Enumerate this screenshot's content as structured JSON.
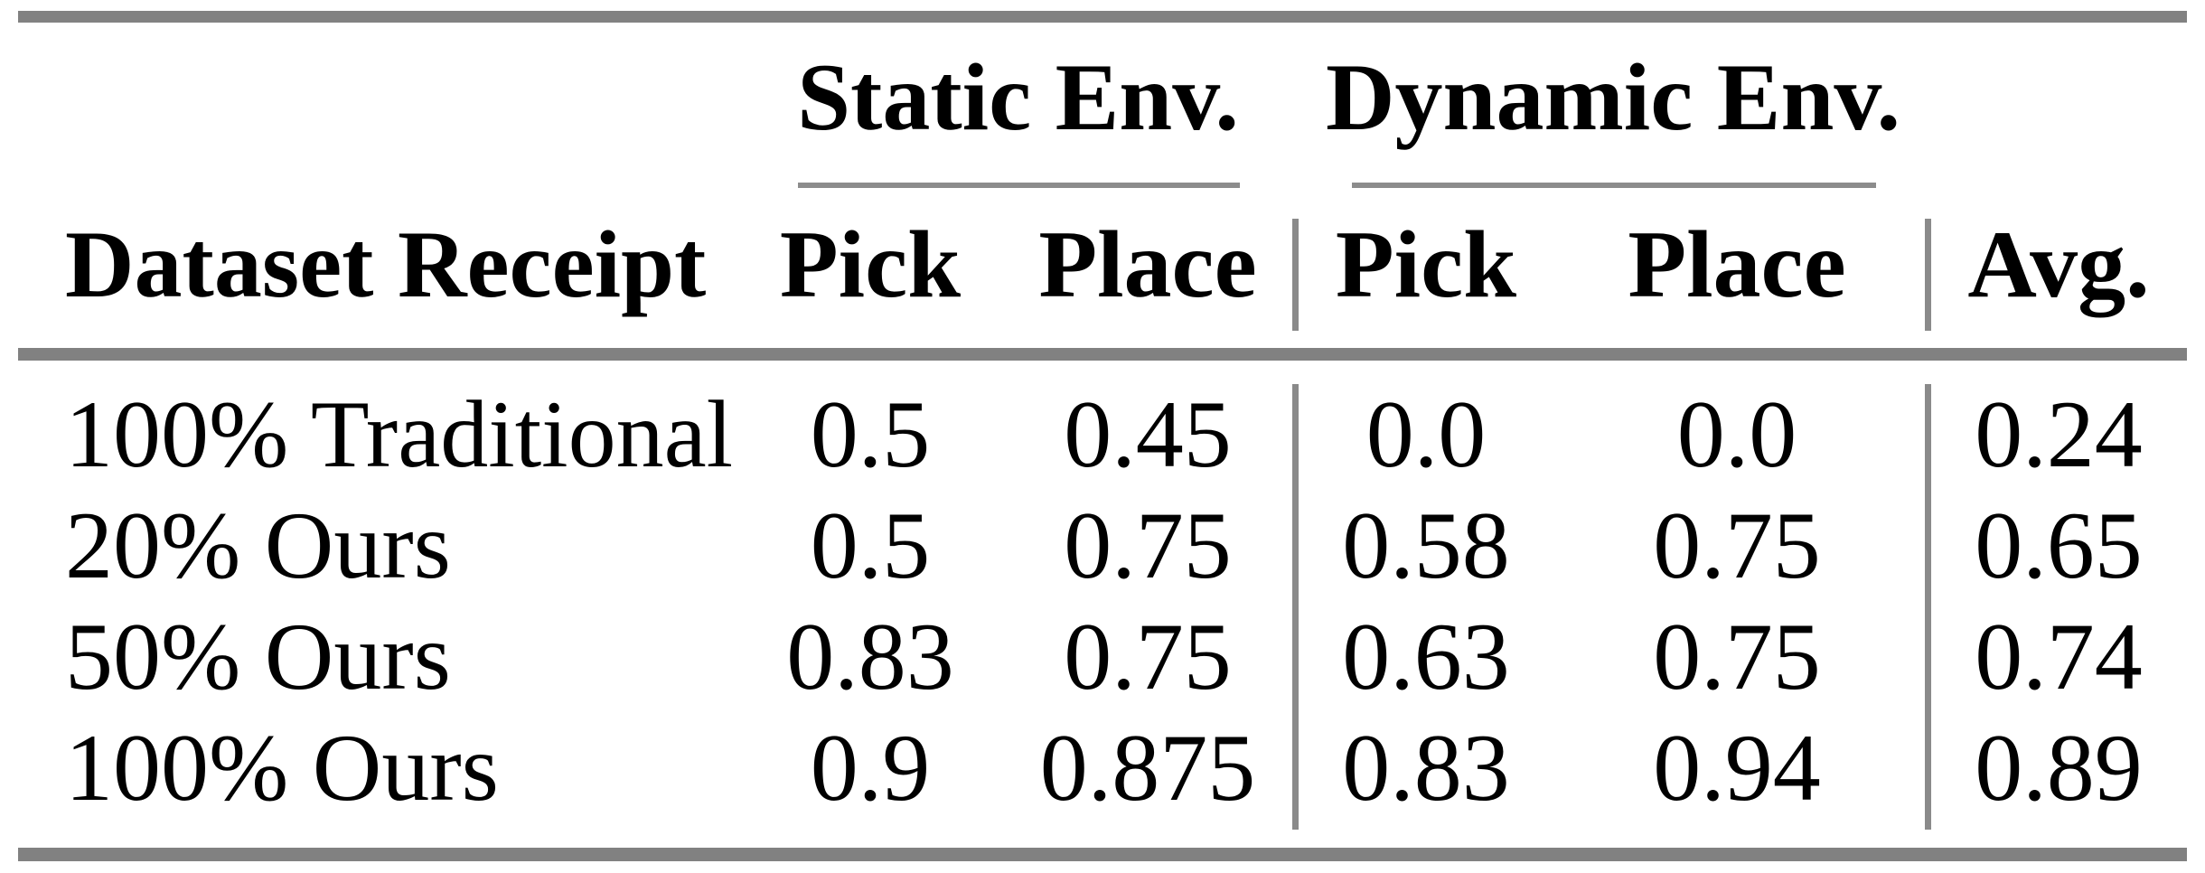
{
  "table": {
    "col_groups": [
      {
        "label": "Static Env."
      },
      {
        "label": "Dynamic Env."
      }
    ],
    "headers": {
      "dataset": "Dataset Receipt",
      "static_pick": "Pick",
      "static_place": "Place",
      "dynamic_pick": "Pick",
      "dynamic_place": "Place",
      "avg": "Avg."
    },
    "rows": [
      {
        "label": "100% Traditional",
        "static_pick": "0.5",
        "static_place": "0.45",
        "dynamic_pick": "0.0",
        "dynamic_place": "0.0",
        "avg": "0.24"
      },
      {
        "label": "20% Ours",
        "static_pick": "0.5",
        "static_place": "0.75",
        "dynamic_pick": "0.58",
        "dynamic_place": "0.75",
        "avg": "0.65"
      },
      {
        "label": "50% Ours",
        "static_pick": "0.83",
        "static_place": "0.75",
        "dynamic_pick": "0.63",
        "dynamic_place": "0.75",
        "avg": "0.74"
      },
      {
        "label": "100% Ours",
        "static_pick": "0.9",
        "static_place": "0.875",
        "dynamic_pick": "0.83",
        "dynamic_place": "0.94",
        "avg": "0.89"
      }
    ],
    "colors": {
      "rule_thick": "#818181",
      "rule_thin": "#8c8c8c",
      "separator": "#8a8a8a",
      "text": "#000000",
      "background": "#ffffff"
    }
  }
}
